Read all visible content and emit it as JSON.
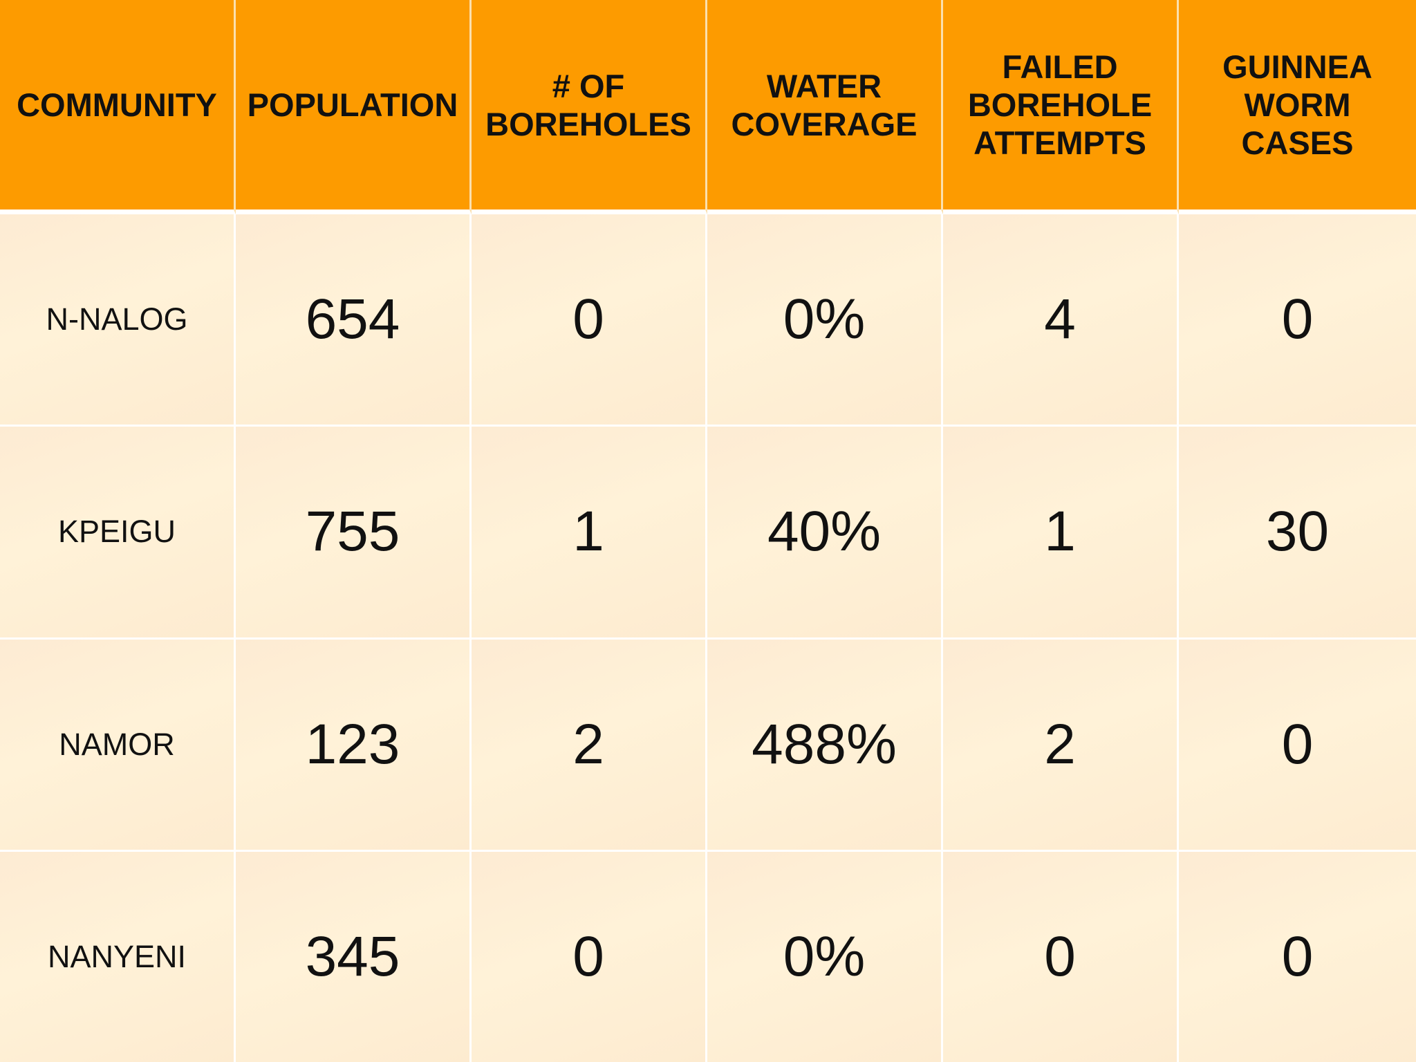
{
  "table": {
    "headers": [
      "COMMUNITY",
      "POPULATION",
      "# OF\nBOREHOLES",
      "WATER\nCOVERAGE",
      "FAILED\nBOREHOLE\nATTEMPTS",
      "GUINNEA\nWORM\nCASES"
    ],
    "rows": [
      [
        "N-NALOG",
        "654",
        "0",
        "0%",
        "4",
        "0"
      ],
      [
        "KPEIGU",
        "755",
        "1",
        "40%",
        "1",
        "30"
      ],
      [
        "NAMOR",
        "123",
        "2",
        "488%",
        "2",
        "0"
      ],
      [
        "NANYENI",
        "345",
        "0",
        "0%",
        "0",
        "0"
      ]
    ]
  },
  "colors": {
    "header_background": "#fd9b00",
    "row_background": "#fdeccf",
    "grid_lines": "#ffffff",
    "text": "#111111"
  }
}
